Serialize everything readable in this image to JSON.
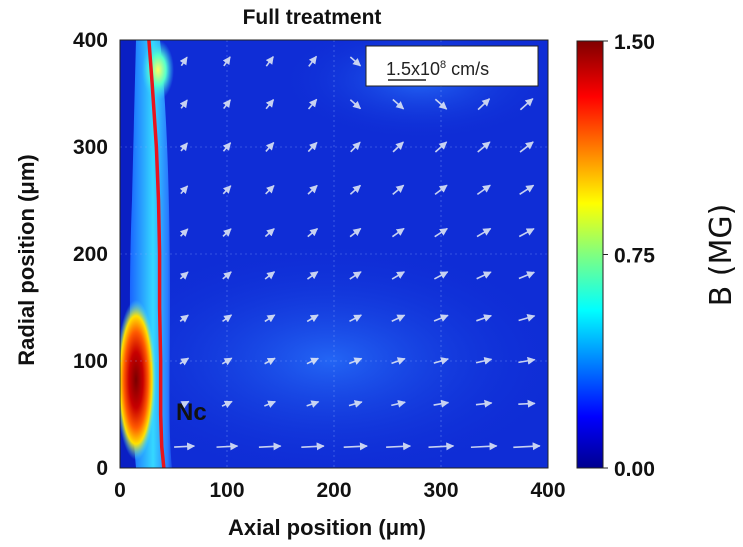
{
  "chart_data": {
    "type": "heatmap",
    "title": "Full treatment",
    "xlabel": "Axial position (μm)",
    "ylabel": "Radial position (μm)",
    "xlim": [
      0,
      400
    ],
    "ylim": [
      0,
      400
    ],
    "x_ticks": [
      "0",
      "100",
      "200",
      "300",
      "400"
    ],
    "y_ticks": [
      "0",
      "100",
      "200",
      "300",
      "400"
    ],
    "colorbar": {
      "label": "B (MG)",
      "min": 0.0,
      "max": 1.5,
      "ticks": [
        "0.00",
        "0.75",
        "1.50"
      ],
      "colormap": "jet"
    },
    "contour": {
      "label": "Nc",
      "color": "#e8141c",
      "points": [
        {
          "x": 27,
          "y": 400
        },
        {
          "x": 30,
          "y": 360
        },
        {
          "x": 34,
          "y": 300
        },
        {
          "x": 36,
          "y": 250
        },
        {
          "x": 37,
          "y": 200
        },
        {
          "x": 37,
          "y": 150
        },
        {
          "x": 38,
          "y": 100
        },
        {
          "x": 38,
          "y": 50
        },
        {
          "x": 39,
          "y": 20
        },
        {
          "x": 41,
          "y": 0
        }
      ]
    },
    "field_features": [
      {
        "desc": "peak B near target surface",
        "x": 15,
        "y": 80,
        "B": 1.5
      },
      {
        "desc": "band along front",
        "x": 30,
        "y": 300,
        "B": 0.8
      }
    ],
    "velocity_arrows": {
      "color": "#e8eef6",
      "grid_x": [
        60,
        100,
        140,
        180,
        220,
        260,
        300,
        340,
        380
      ],
      "grid_y": [
        20,
        60,
        100,
        140,
        180,
        220,
        260,
        300,
        340,
        380
      ]
    },
    "scale_legend": {
      "mantissa": "1.5x10",
      "exponent": "8",
      "unit": " cm/s"
    }
  }
}
